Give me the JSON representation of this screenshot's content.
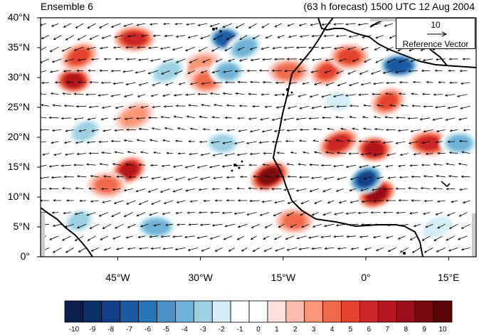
{
  "title_left": "Ensemble 6",
  "title_right": "(63 h forecast) 1500 UTC 12 Aug 2004",
  "reference_vector": {
    "magnitude_label": "10",
    "label": "Reference Vector"
  },
  "map": {
    "lon_range": [
      -59,
      20
    ],
    "lat_range": [
      0,
      40
    ],
    "lat_ticks": [
      "40°N",
      "35°N",
      "30°N",
      "25°N",
      "20°N",
      "15°N",
      "10°N",
      "5°N",
      "0°"
    ],
    "lon_ticks": [
      {
        "lon": -45,
        "label": "45°W"
      },
      {
        "lon": -30,
        "label": "30°W"
      },
      {
        "lon": -15,
        "label": "15°W"
      },
      {
        "lon": 0,
        "label": "0°"
      },
      {
        "lon": 15,
        "label": "15°E"
      }
    ],
    "colorbar": {
      "labels": [
        "-10",
        "-9",
        "-8",
        "-7",
        "-6",
        "-5",
        "-4",
        "-3",
        "-2",
        "-1",
        "0",
        "1",
        "2",
        "3",
        "4",
        "5",
        "6",
        "7",
        "8",
        "9",
        "10"
      ],
      "colors": [
        "#0a1f4a",
        "#0d2e66",
        "#123f87",
        "#1a5aa3",
        "#2574b8",
        "#4a91c6",
        "#6fb1d8",
        "#9cd0e2",
        "#d4eef6",
        "#ffffff",
        "#ffffff",
        "#fde0dd",
        "#fbbcad",
        "#f99677",
        "#f06a4c",
        "#e3432f",
        "#cc2525",
        "#b5161f",
        "#9a0f18",
        "#7a0a0f",
        "#5a0505"
      ]
    },
    "anomaly_blobs": [
      {
        "lon": -53,
        "lat": 29.5,
        "value": 7
      },
      {
        "lon": -52,
        "lat": 33.5,
        "value": 5
      },
      {
        "lon": -42,
        "lat": 36.5,
        "value": 6
      },
      {
        "lon": -43,
        "lat": 14.5,
        "value": 7
      },
      {
        "lon": -47,
        "lat": 12,
        "value": 4
      },
      {
        "lon": -30,
        "lat": 32,
        "value": 3
      },
      {
        "lon": -29,
        "lat": 29.5,
        "value": 4
      },
      {
        "lon": -17.5,
        "lat": 13.5,
        "value": 9
      },
      {
        "lon": -14,
        "lat": 31,
        "value": 4
      },
      {
        "lon": -7,
        "lat": 31,
        "value": 5
      },
      {
        "lon": -3,
        "lat": 33.5,
        "value": 5
      },
      {
        "lon": -5,
        "lat": 19,
        "value": 6
      },
      {
        "lon": 1.5,
        "lat": 18,
        "value": 7
      },
      {
        "lon": 2,
        "lat": 10.5,
        "value": 8
      },
      {
        "lon": 11.5,
        "lat": 19,
        "value": 6
      },
      {
        "lon": 4,
        "lat": 26,
        "value": 5
      },
      {
        "lon": -13,
        "lat": 6,
        "value": 4
      },
      {
        "lon": -42,
        "lat": 23.5,
        "value": 3
      },
      {
        "lon": -25.5,
        "lat": 36.5,
        "value": -7
      },
      {
        "lon": -22,
        "lat": 35,
        "value": -4
      },
      {
        "lon": 6,
        "lat": 32,
        "value": -7
      },
      {
        "lon": 0,
        "lat": 13,
        "value": -8
      },
      {
        "lon": 17,
        "lat": 19,
        "value": -4
      },
      {
        "lon": -36,
        "lat": 31,
        "value": -3
      },
      {
        "lon": -25,
        "lat": 31,
        "value": -4
      },
      {
        "lon": -51,
        "lat": 21,
        "value": -3
      },
      {
        "lon": -38,
        "lat": 5,
        "value": -4
      },
      {
        "lon": -52,
        "lat": 6,
        "value": -3
      },
      {
        "lon": -26,
        "lat": 19,
        "value": -3
      },
      {
        "lon": 13,
        "lat": 5,
        "value": -2
      },
      {
        "lon": -5,
        "lat": 26,
        "value": -2
      }
    ]
  }
}
